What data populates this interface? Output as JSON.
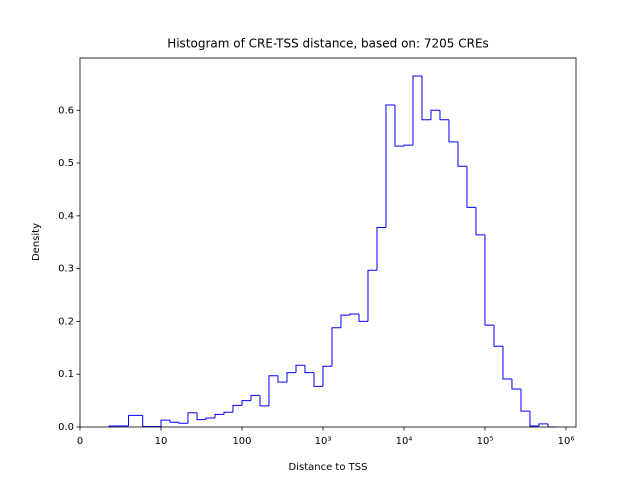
{
  "chart_data": {
    "type": "histogram",
    "title": "Histogram of CRE-TSS distance, based on: 7205 CREs",
    "x_label": "Distance to TSS",
    "y_label": "Density",
    "xscale": "symlog",
    "linthresh": 10,
    "color": "#0000ff",
    "bins": [
      3.594,
      4.642,
      5.995,
      7.743,
      10,
      12.92,
      16.68,
      21.54,
      27.83,
      35.94,
      46.42,
      59.95,
      77.43,
      100,
      129.2,
      166.8,
      215.4,
      278.3,
      359.4,
      464.2,
      599.5,
      774.3,
      1000,
      1292,
      1668,
      2154,
      2783,
      3594,
      4642,
      5995,
      7743,
      10000,
      12920,
      16680,
      21540,
      27830,
      35940,
      46420,
      59950,
      77430,
      100000,
      129200,
      166800,
      215400,
      278300,
      359400,
      464200,
      599500,
      774300
    ],
    "values": [
      0.002,
      0.002,
      0.022,
      0.001,
      0.013,
      0.009,
      0.007,
      0.027,
      0.014,
      0.017,
      0.024,
      0.028,
      0.041,
      0.05,
      0.06,
      0.04,
      0.097,
      0.085,
      0.103,
      0.117,
      0.103,
      0.077,
      0.115,
      0.188,
      0.212,
      0.214,
      0.2,
      0.297,
      0.378,
      0.61,
      0.532,
      0.534,
      0.665,
      0.582,
      0.6,
      0.582,
      0.54,
      0.494,
      0.416,
      0.364,
      0.193,
      0.153,
      0.091,
      0.072,
      0.03,
      0.002,
      0.006,
      0.0
    ],
    "xlim": [
      0,
      1330000
    ],
    "xticks": [
      0,
      10,
      100,
      {
        "value": 1000,
        "label": "10³"
      },
      {
        "value": 10000,
        "label": "10⁴"
      },
      {
        "value": 100000,
        "label": "10⁵"
      },
      {
        "value": 1000000,
        "label": "10⁶"
      }
    ],
    "ylim": [
      0,
      0.699
    ],
    "yticks": [
      {
        "value": 0,
        "label": "0.0"
      },
      0.1,
      0.2,
      0.3,
      0.4,
      0.5,
      0.6
    ]
  }
}
